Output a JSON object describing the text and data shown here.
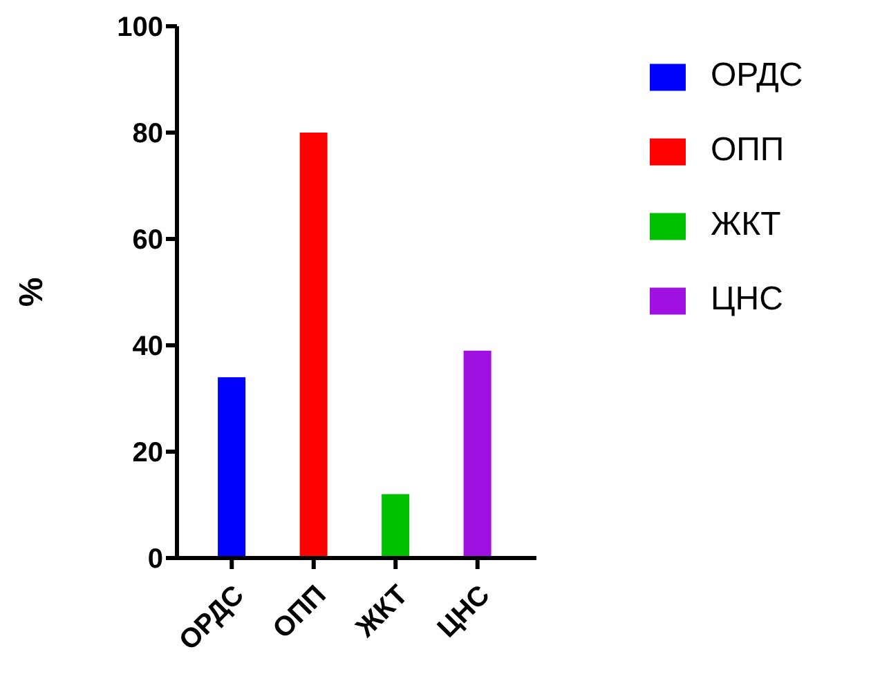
{
  "chart_data": {
    "type": "bar",
    "ylabel": "%",
    "categories": [
      "ОРДС",
      "ОПП",
      "ЖКТ",
      "ЦНС"
    ],
    "series": [
      {
        "name": "ОРДС",
        "color": "#0000ff",
        "values": [
          34,
          null,
          null,
          null
        ]
      },
      {
        "name": "ОПП",
        "color": "#ff0000",
        "values": [
          null,
          80,
          null,
          null
        ]
      },
      {
        "name": "ЖКТ",
        "color": "#00c000",
        "values": [
          null,
          null,
          12,
          null
        ]
      },
      {
        "name": "ЦНС",
        "color": "#a010e0",
        "values": [
          null,
          null,
          null,
          39
        ]
      }
    ],
    "ylim": [
      0,
      100
    ],
    "yticks": [
      0,
      20,
      40,
      60,
      80,
      100
    ],
    "legend": "top right"
  }
}
